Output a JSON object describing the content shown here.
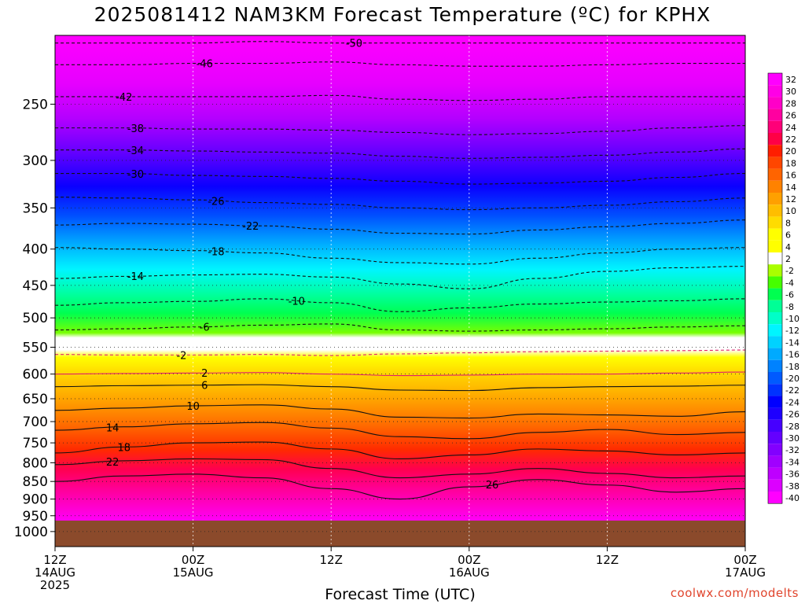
{
  "title": "2025081412 NAM3KM Forecast Temperature (ºC) for KPHX",
  "credit": "coolwx.com/modelts",
  "chart_data": {
    "type": "contour",
    "title": "2025081412 NAM3KM Forecast Temperature (ºC) for KPHX",
    "xlabel": "Forecast Time (UTC)",
    "ylabel": "",
    "x_range_hours": [
      0,
      60
    ],
    "y_range_hpa": [
      200,
      1050
    ],
    "y_scale": "log",
    "y_ticks": [
      250,
      300,
      350,
      400,
      450,
      500,
      550,
      600,
      650,
      700,
      750,
      800,
      850,
      900,
      950,
      1000
    ],
    "x_ticks": [
      {
        "hour": 0,
        "label": "12Z",
        "label2": "14AUG",
        "label3": "2025"
      },
      {
        "hour": 12,
        "label": "00Z",
        "label2": "15AUG",
        "label3": ""
      },
      {
        "hour": 24,
        "label": "12Z",
        "label2": "",
        "label3": ""
      },
      {
        "hour": 36,
        "label": "00Z",
        "label2": "16AUG",
        "label3": ""
      },
      {
        "hour": 48,
        "label": "12Z",
        "label2": "",
        "label3": ""
      },
      {
        "hour": 60,
        "label": "00Z",
        "label2": "17AUG",
        "label3": ""
      }
    ],
    "surface_pressure_hpa": 965,
    "colorbar_labels": [
      32,
      30,
      28,
      26,
      24,
      22,
      20,
      18,
      16,
      14,
      12,
      10,
      8,
      6,
      4,
      2,
      -2,
      -4,
      -6,
      -8,
      -10,
      -12,
      -14,
      -16,
      -18,
      -20,
      -22,
      -24,
      -26,
      -28,
      -30,
      -32,
      -34,
      -36,
      -38,
      -40
    ],
    "colorbar_colors": [
      "#ff00ff",
      "#ff00e6",
      "#ff00c8",
      "#ff00a0",
      "#ff0078",
      "#ff0046",
      "#ff1e00",
      "#ff4600",
      "#ff6400",
      "#ff8200",
      "#ffa000",
      "#ffbe00",
      "#ffdc00",
      "#ffff00",
      "#ffff00",
      "#ffffff",
      "#aaff00",
      "#46ff00",
      "#00ff50",
      "#00ff96",
      "#00ffc8",
      "#00f5ff",
      "#00d2ff",
      "#00aaff",
      "#0082ff",
      "#005aff",
      "#0032ff",
      "#0000ff",
      "#1e00ff",
      "#4600ff",
      "#6400ff",
      "#8200ff",
      "#a000ff",
      "#be00ff",
      "#dc00ff",
      "#ff00ff"
    ],
    "contours": [
      {
        "value": -50,
        "pressure_hpa": [
          205,
          205,
          205,
          204,
          205,
          205,
          205,
          205,
          205,
          205,
          205
        ],
        "label_hour": 26
      },
      {
        "value": -46,
        "pressure_hpa": [
          220,
          220,
          219,
          219,
          218,
          220,
          221,
          221,
          220,
          219,
          219
        ],
        "label_hour": 13
      },
      {
        "value": -42,
        "pressure_hpa": [
          244,
          244,
          244,
          244,
          243,
          246,
          247,
          246,
          244,
          244,
          244
        ],
        "label_hour": 6
      },
      {
        "value": -38,
        "pressure_hpa": [
          270,
          270,
          271,
          271,
          272,
          274,
          276,
          275,
          273,
          270,
          268
        ],
        "label_hour": 7
      },
      {
        "value": -34,
        "pressure_hpa": [
          290,
          290,
          291,
          292,
          293,
          296,
          298,
          297,
          295,
          292,
          289
        ],
        "label_hour": 7
      },
      {
        "value": -30,
        "pressure_hpa": [
          313,
          313,
          315,
          316,
          318,
          321,
          324,
          323,
          321,
          317,
          313
        ],
        "label_hour": 7
      },
      {
        "value": -26,
        "pressure_hpa": [
          338,
          339,
          341,
          344,
          346,
          350,
          352,
          350,
          347,
          343,
          339
        ],
        "label_hour": 14
      },
      {
        "value": -22,
        "pressure_hpa": [
          370,
          368,
          369,
          371,
          375,
          380,
          381,
          376,
          372,
          368,
          364
        ],
        "label_hour": 17
      },
      {
        "value": -18,
        "pressure_hpa": [
          398,
          400,
          402,
          405,
          412,
          418,
          420,
          412,
          405,
          400,
          398
        ],
        "label_hour": 14
      },
      {
        "value": -14,
        "pressure_hpa": [
          440,
          437,
          435,
          434,
          438,
          448,
          455,
          440,
          430,
          425,
          423
        ],
        "label_hour": 7
      },
      {
        "value": -10,
        "pressure_hpa": [
          480,
          476,
          474,
          470,
          476,
          490,
          484,
          478,
          475,
          473,
          470
        ],
        "label_hour": 21
      },
      {
        "value": -6,
        "pressure_hpa": [
          520,
          518,
          515,
          512,
          510,
          520,
          522,
          520,
          518,
          515,
          513
        ],
        "label_hour": 13
      },
      {
        "value": -2,
        "pressure_hpa": [
          563,
          564,
          564,
          563,
          565,
          562,
          560,
          558,
          557,
          556,
          555
        ],
        "label_hour": 11
      },
      {
        "value": 2,
        "pressure_hpa": [
          600,
          599,
          598,
          597,
          600,
          603,
          602,
          600,
          600,
          598,
          596
        ],
        "label_hour": 13
      },
      {
        "value": 6,
        "pressure_hpa": [
          625,
          623,
          622,
          621,
          625,
          632,
          633,
          627,
          625,
          624,
          622
        ],
        "label_hour": 13
      },
      {
        "value": 10,
        "pressure_hpa": [
          675,
          670,
          665,
          663,
          672,
          690,
          692,
          683,
          685,
          688,
          678
        ],
        "label_hour": 12
      },
      {
        "value": 14,
        "pressure_hpa": [
          720,
          712,
          705,
          702,
          715,
          735,
          740,
          725,
          718,
          730,
          725
        ],
        "label_hour": 5
      },
      {
        "value": 18,
        "pressure_hpa": [
          775,
          760,
          750,
          748,
          765,
          790,
          780,
          765,
          770,
          780,
          775
        ],
        "label_hour": 6
      },
      {
        "value": 22,
        "pressure_hpa": [
          805,
          795,
          790,
          792,
          815,
          840,
          830,
          815,
          828,
          840,
          835
        ],
        "label_hour": 5
      },
      {
        "value": 26,
        "pressure_hpa": [
          850,
          835,
          830,
          840,
          870,
          900,
          865,
          845,
          860,
          880,
          870
        ],
        "label_hour": 38
      }
    ]
  }
}
